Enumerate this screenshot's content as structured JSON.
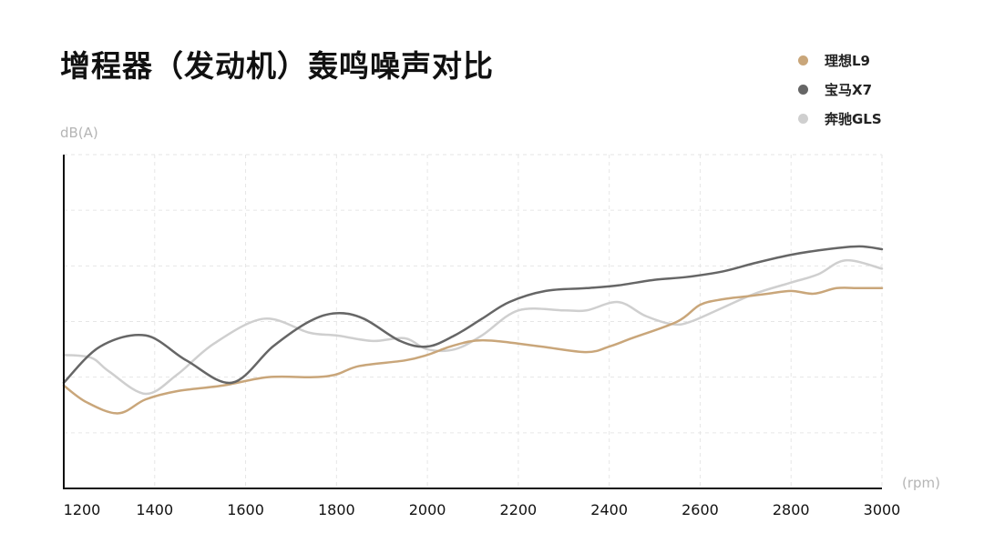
{
  "chart_data": {
    "type": "line",
    "title": "增程器（发动机）轰鸣噪声对比",
    "ylabel": "dB(A)",
    "xlabel": "(rpm)",
    "xlim": [
      1200,
      3000
    ],
    "ylim": [
      0,
      6
    ],
    "x_ticks": [
      1200,
      1400,
      1600,
      1800,
      2000,
      2200,
      2400,
      2600,
      2800,
      3000
    ],
    "x_tick_labels": [
      "1200",
      "1400",
      "1600",
      "1800",
      "2000",
      "2200",
      "2400",
      "2600",
      "2800",
      "3000"
    ],
    "y_gridlines": [
      1,
      2,
      3,
      4,
      5,
      6
    ],
    "grid": true,
    "legend_position": "top-right",
    "series": [
      {
        "name": "理想L9",
        "color": "#c9a67a",
        "x": [
          1200,
          1250,
          1320,
          1380,
          1450,
          1550,
          1650,
          1750,
          1800,
          1850,
          1950,
          2000,
          2050,
          2100,
          2150,
          2250,
          2350,
          2400,
          2450,
          2550,
          2600,
          2650,
          2700,
          2750,
          2800,
          2850,
          2900,
          2950,
          3000
        ],
        "y": [
          1.85,
          1.55,
          1.35,
          1.6,
          1.75,
          1.85,
          2.0,
          2.0,
          2.05,
          2.2,
          2.3,
          2.4,
          2.55,
          2.65,
          2.65,
          2.55,
          2.45,
          2.55,
          2.7,
          3.0,
          3.3,
          3.4,
          3.45,
          3.5,
          3.55,
          3.5,
          3.6,
          3.6,
          3.6
        ]
      },
      {
        "name": "宝马X7",
        "color": "#666666",
        "x": [
          1200,
          1280,
          1380,
          1470,
          1570,
          1660,
          1740,
          1800,
          1860,
          1940,
          2000,
          2060,
          2120,
          2180,
          2260,
          2350,
          2420,
          2500,
          2570,
          2650,
          2720,
          2800,
          2880,
          2950,
          3000
        ],
        "y": [
          1.9,
          2.55,
          2.75,
          2.3,
          1.9,
          2.55,
          3.0,
          3.15,
          3.05,
          2.65,
          2.55,
          2.75,
          3.05,
          3.35,
          3.55,
          3.6,
          3.65,
          3.75,
          3.8,
          3.9,
          4.05,
          4.2,
          4.3,
          4.35,
          4.3
        ]
      },
      {
        "name": "奔驰GLS",
        "color": "#cfcfcf",
        "x": [
          1200,
          1260,
          1300,
          1380,
          1450,
          1530,
          1640,
          1740,
          1800,
          1880,
          1950,
          2000,
          2060,
          2120,
          2200,
          2300,
          2350,
          2420,
          2480,
          2540,
          2580,
          2650,
          2720,
          2800,
          2860,
          2920,
          3000
        ],
        "y": [
          2.4,
          2.35,
          2.1,
          1.7,
          2.05,
          2.6,
          3.05,
          2.8,
          2.75,
          2.65,
          2.7,
          2.5,
          2.5,
          2.75,
          3.2,
          3.2,
          3.2,
          3.35,
          3.1,
          2.95,
          3.0,
          3.25,
          3.5,
          3.7,
          3.85,
          4.1,
          3.95
        ]
      }
    ]
  }
}
